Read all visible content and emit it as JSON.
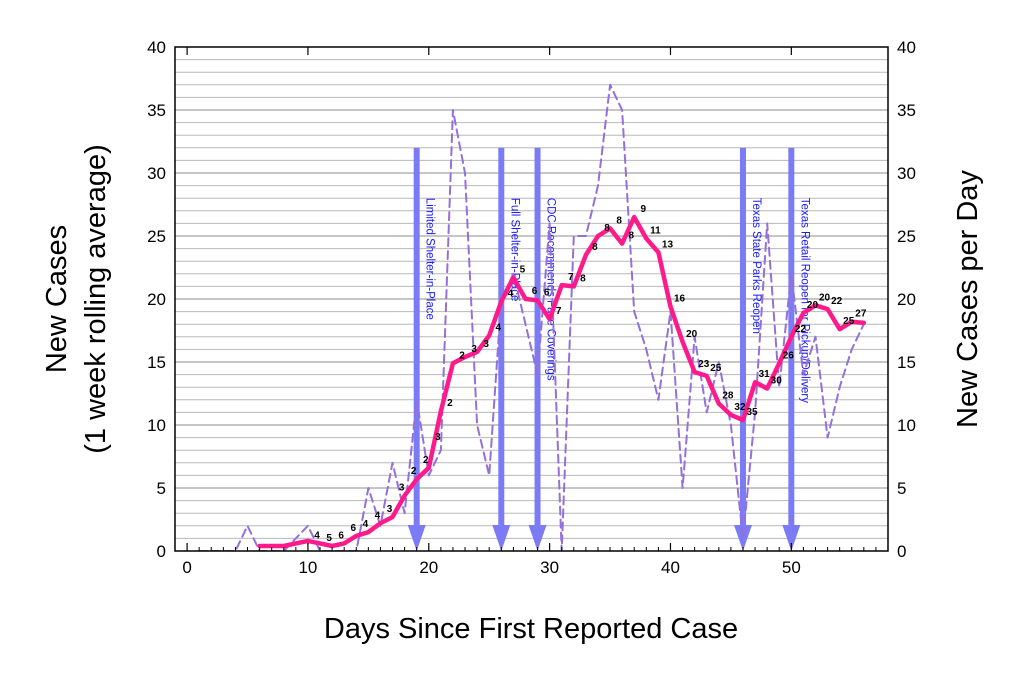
{
  "chart_data": {
    "type": "line",
    "xlabel": "Days Since First Reported Case",
    "ylabel_left": [
      "New Cases",
      "(1 week rolling average)"
    ],
    "ylabel_right": "New Cases per Day",
    "xlim": [
      -1,
      58
    ],
    "ylim_left": [
      0,
      40
    ],
    "ylim_right": [
      0,
      40
    ],
    "x_ticks": [
      0,
      10,
      20,
      30,
      40,
      50
    ],
    "y_ticks": [
      0,
      5,
      10,
      15,
      20,
      25,
      30,
      35,
      40
    ],
    "grid": "horizontal",
    "series": [
      {
        "style": "dashed",
        "axis": "right",
        "color": "#9370db",
        "x": [
          1,
          2,
          3,
          4,
          5,
          6,
          7,
          8,
          9,
          10,
          11,
          12,
          13,
          14,
          15,
          16,
          17,
          18,
          19,
          20,
          21,
          22,
          23,
          24,
          25,
          26,
          27,
          28,
          29,
          30,
          31,
          32,
          33,
          34,
          35,
          36,
          37,
          38,
          39,
          40,
          41,
          42,
          43,
          44,
          45,
          46,
          47,
          48,
          49,
          50,
          51,
          52,
          53,
          54,
          55,
          56
        ],
        "values": [
          0,
          0,
          0,
          0,
          2,
          0,
          0,
          0,
          1,
          2,
          0,
          0,
          0,
          0,
          5,
          2,
          7,
          3,
          12,
          6,
          8,
          35,
          30,
          10,
          6,
          20,
          22,
          18,
          14,
          26,
          0,
          25,
          25,
          29,
          37,
          35,
          19,
          16,
          12,
          19,
          5,
          17,
          11,
          15,
          10,
          1,
          11,
          26,
          13,
          22,
          14,
          17,
          9,
          13,
          16,
          18
        ]
      },
      {
        "style": "solid",
        "axis": "left",
        "color": "#ff1a8c",
        "x": [
          6,
          7,
          8,
          9,
          10,
          11,
          12,
          13,
          14,
          15,
          16,
          17,
          18,
          19,
          20,
          21,
          22,
          23,
          24,
          25,
          26,
          27,
          28,
          29,
          30,
          31,
          32,
          33,
          34,
          35,
          36,
          37,
          38,
          39,
          40,
          41,
          42,
          43,
          44,
          45,
          46,
          47,
          48,
          49,
          50,
          51,
          52,
          53,
          54,
          55,
          56
        ],
        "values": [
          0.4,
          0.4,
          0.4,
          0.6,
          0.8,
          0.6,
          0.4,
          0.6,
          1.2,
          1.5,
          2.2,
          2.7,
          4.4,
          5.7,
          6.6,
          11.1,
          14.9,
          15.4,
          15.8,
          17.1,
          19.8,
          21.7,
          20.0,
          19.9,
          18.4,
          21.1,
          21.0,
          23.5,
          25.0,
          25.6,
          24.4,
          26.5,
          24.8,
          23.7,
          19.4,
          16.6,
          14.2,
          13.9,
          11.7,
          10.8,
          10.4,
          13.4,
          12.9,
          14.9,
          17.0,
          18.9,
          19.5,
          19.2,
          17.6,
          18.2,
          18.1
        ]
      }
    ],
    "data_labels": [
      {
        "x": 11,
        "y": 0.6,
        "text": "4"
      },
      {
        "x": 12,
        "y": 0.4,
        "text": "5"
      },
      {
        "x": 13,
        "y": 0.6,
        "text": "6"
      },
      {
        "x": 14,
        "y": 1.2,
        "text": "6"
      },
      {
        "x": 15,
        "y": 1.5,
        "text": "4"
      },
      {
        "x": 16,
        "y": 2.2,
        "text": "4"
      },
      {
        "x": 17,
        "y": 2.7,
        "text": "3"
      },
      {
        "x": 18,
        "y": 4.4,
        "text": "3"
      },
      {
        "x": 19,
        "y": 5.7,
        "text": "2"
      },
      {
        "x": 20,
        "y": 6.6,
        "text": "2"
      },
      {
        "x": 21,
        "y": 8.4,
        "text": "3"
      },
      {
        "x": 22,
        "y": 11.1,
        "text": "2"
      },
      {
        "x": 23,
        "y": 14.9,
        "text": "2"
      },
      {
        "x": 24,
        "y": 15.4,
        "text": "3"
      },
      {
        "x": 25,
        "y": 15.8,
        "text": "3"
      },
      {
        "x": 26,
        "y": 17.1,
        "text": "4"
      },
      {
        "x": 27,
        "y": 19.8,
        "text": "4"
      },
      {
        "x": 28,
        "y": 21.7,
        "text": "5"
      },
      {
        "x": 29,
        "y": 20.0,
        "text": "6"
      },
      {
        "x": 30,
        "y": 19.9,
        "text": "6"
      },
      {
        "x": 31,
        "y": 18.4,
        "text": "7"
      },
      {
        "x": 32,
        "y": 21.1,
        "text": "7"
      },
      {
        "x": 33,
        "y": 21.0,
        "text": "8"
      },
      {
        "x": 34,
        "y": 23.5,
        "text": "8"
      },
      {
        "x": 35,
        "y": 25.0,
        "text": "8"
      },
      {
        "x": 36,
        "y": 25.6,
        "text": "8"
      },
      {
        "x": 37,
        "y": 24.4,
        "text": "8"
      },
      {
        "x": 38,
        "y": 26.5,
        "text": "9"
      },
      {
        "x": 39,
        "y": 24.8,
        "text": "11"
      },
      {
        "x": 40,
        "y": 23.7,
        "text": "13"
      },
      {
        "x": 41,
        "y": 19.4,
        "text": "16"
      },
      {
        "x": 42,
        "y": 16.6,
        "text": "20"
      },
      {
        "x": 43,
        "y": 14.2,
        "text": "23"
      },
      {
        "x": 44,
        "y": 13.9,
        "text": "25"
      },
      {
        "x": 45,
        "y": 11.7,
        "text": "28"
      },
      {
        "x": 46,
        "y": 10.8,
        "text": "32"
      },
      {
        "x": 47,
        "y": 10.4,
        "text": "35"
      },
      {
        "x": 48,
        "y": 13.4,
        "text": "31"
      },
      {
        "x": 49,
        "y": 12.9,
        "text": "30"
      },
      {
        "x": 50,
        "y": 14.9,
        "text": "26"
      },
      {
        "x": 51,
        "y": 17.0,
        "text": "22"
      },
      {
        "x": 52,
        "y": 18.9,
        "text": "20"
      },
      {
        "x": 53,
        "y": 19.5,
        "text": "20"
      },
      {
        "x": 54,
        "y": 19.2,
        "text": "22"
      },
      {
        "x": 55,
        "y": 17.6,
        "text": "25"
      },
      {
        "x": 56,
        "y": 18.2,
        "text": "27"
      }
    ],
    "annotations": [
      {
        "x": 19,
        "text": "Limited Shelter-in-Place"
      },
      {
        "x": 26,
        "text": "Full Shelter-in-Place"
      },
      {
        "x": 29,
        "text": "CDC Recommends Face Coverings"
      },
      {
        "x": 46,
        "text": "Texas State Parks Reopen"
      },
      {
        "x": 50,
        "text": "Texas Retail Reopen for Pickup/Delivery"
      }
    ],
    "annotation_arrow_top": 32,
    "annotation_color": "#7b7bf5"
  }
}
